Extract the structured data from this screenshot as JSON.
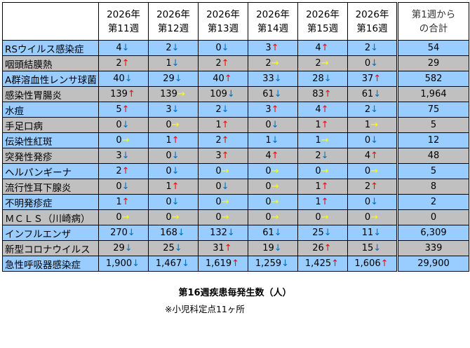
{
  "colors": {
    "blue_row": "#99CCFF",
    "gray_row": "#C0C0C0",
    "up": "#FF0000",
    "down": "#0070C0",
    "flat": "#FFFF00"
  },
  "header": {
    "weeks": [
      [
        "2026年",
        "第11週"
      ],
      [
        "2026年",
        "第12週"
      ],
      [
        "2026年",
        "第13週"
      ],
      [
        "2026年",
        "第14週"
      ],
      [
        "2026年",
        "第15週"
      ],
      [
        "2026年",
        "第16週"
      ]
    ],
    "total": [
      "第1週から",
      "の合計"
    ]
  },
  "arrows": {
    "up": "↑",
    "down": "↓",
    "flat": "→"
  },
  "rows": [
    {
      "name": "RSウイルス感染症",
      "values": [
        [
          "4",
          "down"
        ],
        [
          "2",
          "down"
        ],
        [
          "0",
          "down"
        ],
        [
          "3",
          "up"
        ],
        [
          "4",
          "up"
        ],
        [
          "2",
          "down"
        ]
      ],
      "total": "54"
    },
    {
      "name": "咽頭結膜熱",
      "values": [
        [
          "2",
          "up"
        ],
        [
          "1",
          "down"
        ],
        [
          "2",
          "up"
        ],
        [
          "2",
          "flat"
        ],
        [
          "2",
          "flat"
        ],
        [
          "0",
          "down"
        ]
      ],
      "total": "29"
    },
    {
      "name": "A群溶血性レンサ球菌",
      "values": [
        [
          "40",
          "down"
        ],
        [
          "29",
          "down"
        ],
        [
          "40",
          "up"
        ],
        [
          "33",
          "down"
        ],
        [
          "28",
          "down"
        ],
        [
          "37",
          "up"
        ]
      ],
      "total": "582"
    },
    {
      "name": "感染性胃腸炎",
      "values": [
        [
          "139",
          "up"
        ],
        [
          "139",
          "flat"
        ],
        [
          "109",
          "down"
        ],
        [
          "61",
          "down"
        ],
        [
          "83",
          "up"
        ],
        [
          "61",
          "down"
        ]
      ],
      "total": "1,964"
    },
    {
      "name": "水痘",
      "values": [
        [
          "5",
          "up"
        ],
        [
          "3",
          "down"
        ],
        [
          "2",
          "down"
        ],
        [
          "3",
          "up"
        ],
        [
          "4",
          "up"
        ],
        [
          "2",
          "down"
        ]
      ],
      "total": "75"
    },
    {
      "name": "手足口病",
      "values": [
        [
          "0",
          "down"
        ],
        [
          "0",
          "flat"
        ],
        [
          "1",
          "up"
        ],
        [
          "0",
          "down"
        ],
        [
          "1",
          "up"
        ],
        [
          "1",
          "flat"
        ]
      ],
      "total": "5"
    },
    {
      "name": "伝染性紅斑",
      "values": [
        [
          "0",
          "flat"
        ],
        [
          "1",
          "up"
        ],
        [
          "2",
          "up"
        ],
        [
          "1",
          "down"
        ],
        [
          "1",
          "flat"
        ],
        [
          "0",
          "down"
        ]
      ],
      "total": "12"
    },
    {
      "name": "突発性発疹",
      "values": [
        [
          "3",
          "down"
        ],
        [
          "0",
          "down"
        ],
        [
          "3",
          "up"
        ],
        [
          "4",
          "up"
        ],
        [
          "2",
          "down"
        ],
        [
          "4",
          "up"
        ]
      ],
      "total": "48"
    },
    {
      "name": "ヘルパンギーナ",
      "values": [
        [
          "2",
          "up"
        ],
        [
          "0",
          "down"
        ],
        [
          "0",
          "flat"
        ],
        [
          "0",
          "flat"
        ],
        [
          "0",
          "flat"
        ],
        [
          "0",
          "flat"
        ]
      ],
      "total": "5"
    },
    {
      "name": "流行性耳下腺炎",
      "values": [
        [
          "0",
          "down"
        ],
        [
          "1",
          "up"
        ],
        [
          "0",
          "down"
        ],
        [
          "0",
          "flat"
        ],
        [
          "1",
          "up"
        ],
        [
          "2",
          "up"
        ]
      ],
      "total": "8"
    },
    {
      "name": "不明発疹症",
      "values": [
        [
          "1",
          "up"
        ],
        [
          "0",
          "down"
        ],
        [
          "0",
          "flat"
        ],
        [
          "0",
          "flat"
        ],
        [
          "1",
          "up"
        ],
        [
          "0",
          "down"
        ]
      ],
      "total": "2"
    },
    {
      "name": "ＭＣＬＳ（川崎病）",
      "values": [
        [
          "0",
          "flat"
        ],
        [
          "0",
          "flat"
        ],
        [
          "0",
          "flat"
        ],
        [
          "0",
          "flat"
        ],
        [
          "0",
          "flat"
        ],
        [
          "0",
          "flat"
        ]
      ],
      "total": "0"
    },
    {
      "name": "インフルエンザ",
      "values": [
        [
          "270",
          "down"
        ],
        [
          "168",
          "down"
        ],
        [
          "132",
          "down"
        ],
        [
          "61",
          "down"
        ],
        [
          "25",
          "down"
        ],
        [
          "11",
          "down"
        ]
      ],
      "total": "6,309"
    },
    {
      "name": "新型コロナウイルス",
      "values": [
        [
          "29",
          "down"
        ],
        [
          "25",
          "down"
        ],
        [
          "31",
          "up"
        ],
        [
          "19",
          "down"
        ],
        [
          "26",
          "up"
        ],
        [
          "15",
          "down"
        ]
      ],
      "total": "339"
    },
    {
      "name": "急性呼吸器感染症",
      "values": [
        [
          "1,900",
          "down"
        ],
        [
          "1,467",
          "down"
        ],
        [
          "1,619",
          "up"
        ],
        [
          "1,259",
          "down"
        ],
        [
          "1,425",
          "up"
        ],
        [
          "1,606",
          "up"
        ]
      ],
      "total": "29,900"
    }
  ],
  "caption": "第16週疾患毎発生数（人）",
  "note": "※小児科定点11ヶ所"
}
